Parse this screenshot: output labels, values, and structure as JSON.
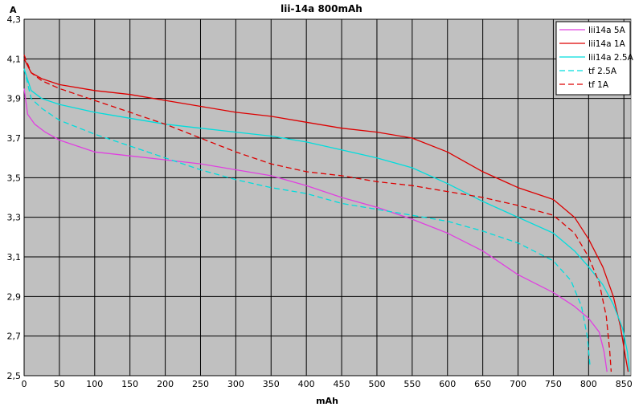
{
  "chart_data": {
    "type": "line",
    "title": "lii-14a 800mAh",
    "xlabel": "mAh",
    "ylabel": "A",
    "xlim": [
      0,
      860
    ],
    "ylim": [
      2.5,
      4.3
    ],
    "x_ticks": [
      0,
      50,
      100,
      150,
      200,
      250,
      300,
      350,
      400,
      450,
      500,
      550,
      600,
      650,
      700,
      750,
      800,
      850
    ],
    "y_ticks": [
      2.5,
      2.7,
      2.9,
      3.1,
      3.3,
      3.5,
      3.7,
      3.9,
      4.1,
      4.3
    ],
    "y_tick_labels": [
      "2,5",
      "2,7",
      "2,9",
      "3,1",
      "3,3",
      "3,5",
      "3,7",
      "3,9",
      "4,1",
      "4,3"
    ],
    "grid": true,
    "legend_position": "top-right",
    "plot_background": "#c0c0c0",
    "series": [
      {
        "name": "lii14a 5A",
        "color": "#e040e0",
        "dash": "solid",
        "points": [
          [
            0,
            3.95
          ],
          [
            5,
            3.82
          ],
          [
            15,
            3.77
          ],
          [
            30,
            3.73
          ],
          [
            50,
            3.69
          ],
          [
            75,
            3.66
          ],
          [
            100,
            3.63
          ],
          [
            150,
            3.61
          ],
          [
            200,
            3.59
          ],
          [
            250,
            3.57
          ],
          [
            300,
            3.54
          ],
          [
            350,
            3.51
          ],
          [
            400,
            3.46
          ],
          [
            450,
            3.4
          ],
          [
            500,
            3.35
          ],
          [
            550,
            3.29
          ],
          [
            600,
            3.22
          ],
          [
            650,
            3.13
          ],
          [
            700,
            3.01
          ],
          [
            750,
            2.92
          ],
          [
            780,
            2.85
          ],
          [
            800,
            2.79
          ],
          [
            815,
            2.72
          ],
          [
            822,
            2.62
          ],
          [
            826,
            2.52
          ]
        ]
      },
      {
        "name": "lii14a 1A",
        "color": "#dd0000",
        "dash": "solid",
        "points": [
          [
            0,
            4.1
          ],
          [
            10,
            4.03
          ],
          [
            25,
            4.0
          ],
          [
            50,
            3.97
          ],
          [
            100,
            3.94
          ],
          [
            150,
            3.92
          ],
          [
            200,
            3.89
          ],
          [
            250,
            3.86
          ],
          [
            300,
            3.83
          ],
          [
            350,
            3.81
          ],
          [
            400,
            3.78
          ],
          [
            450,
            3.75
          ],
          [
            500,
            3.73
          ],
          [
            550,
            3.7
          ],
          [
            600,
            3.63
          ],
          [
            650,
            3.53
          ],
          [
            700,
            3.45
          ],
          [
            750,
            3.39
          ],
          [
            780,
            3.3
          ],
          [
            800,
            3.19
          ],
          [
            820,
            3.05
          ],
          [
            835,
            2.9
          ],
          [
            845,
            2.75
          ],
          [
            852,
            2.6
          ],
          [
            856,
            2.52
          ]
        ]
      },
      {
        "name": "lii14a 2.5A",
        "color": "#00dddd",
        "dash": "solid",
        "points": [
          [
            0,
            4.05
          ],
          [
            10,
            3.94
          ],
          [
            25,
            3.9
          ],
          [
            50,
            3.87
          ],
          [
            100,
            3.83
          ],
          [
            150,
            3.8
          ],
          [
            200,
            3.77
          ],
          [
            250,
            3.75
          ],
          [
            300,
            3.73
          ],
          [
            350,
            3.71
          ],
          [
            400,
            3.68
          ],
          [
            450,
            3.64
          ],
          [
            500,
            3.6
          ],
          [
            550,
            3.55
          ],
          [
            600,
            3.47
          ],
          [
            650,
            3.38
          ],
          [
            700,
            3.3
          ],
          [
            750,
            3.22
          ],
          [
            780,
            3.13
          ],
          [
            800,
            3.05
          ],
          [
            820,
            2.96
          ],
          [
            835,
            2.86
          ],
          [
            848,
            2.74
          ],
          [
            855,
            2.62
          ],
          [
            858,
            2.52
          ]
        ]
      },
      {
        "name": "tf 2.5A",
        "color": "#00dddd",
        "dash": "dashed",
        "points": [
          [
            0,
            4.05
          ],
          [
            10,
            3.9
          ],
          [
            25,
            3.85
          ],
          [
            50,
            3.79
          ],
          [
            100,
            3.72
          ],
          [
            150,
            3.66
          ],
          [
            200,
            3.6
          ],
          [
            250,
            3.54
          ],
          [
            300,
            3.49
          ],
          [
            350,
            3.45
          ],
          [
            400,
            3.42
          ],
          [
            450,
            3.37
          ],
          [
            500,
            3.34
          ],
          [
            550,
            3.31
          ],
          [
            600,
            3.28
          ],
          [
            650,
            3.23
          ],
          [
            700,
            3.17
          ],
          [
            750,
            3.08
          ],
          [
            775,
            2.98
          ],
          [
            790,
            2.85
          ],
          [
            798,
            2.7
          ],
          [
            802,
            2.55
          ]
        ]
      },
      {
        "name": "tf 1A",
        "color": "#dd0000",
        "dash": "dashed",
        "points": [
          [
            0,
            4.12
          ],
          [
            10,
            4.03
          ],
          [
            25,
            3.99
          ],
          [
            50,
            3.95
          ],
          [
            100,
            3.89
          ],
          [
            150,
            3.83
          ],
          [
            200,
            3.77
          ],
          [
            250,
            3.7
          ],
          [
            300,
            3.63
          ],
          [
            350,
            3.57
          ],
          [
            400,
            3.53
          ],
          [
            450,
            3.51
          ],
          [
            500,
            3.48
          ],
          [
            550,
            3.46
          ],
          [
            600,
            3.43
          ],
          [
            650,
            3.4
          ],
          [
            700,
            3.36
          ],
          [
            750,
            3.31
          ],
          [
            780,
            3.22
          ],
          [
            800,
            3.1
          ],
          [
            815,
            2.97
          ],
          [
            825,
            2.8
          ],
          [
            830,
            2.62
          ],
          [
            832,
            2.52
          ]
        ]
      }
    ]
  }
}
